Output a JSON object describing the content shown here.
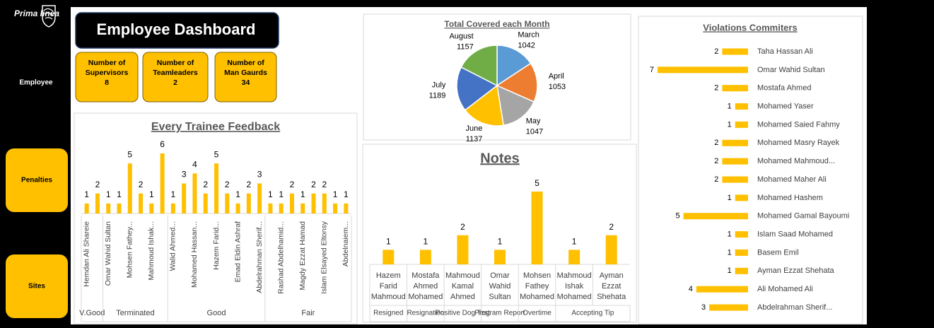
{
  "sidebar": {
    "logo": "Prima linea",
    "nav": [
      "Employee",
      "Penalties",
      "Sites"
    ]
  },
  "header": {
    "title": "Employee Dashboard"
  },
  "kpis": [
    {
      "label": "Number of Supervisors",
      "value": 8
    },
    {
      "label": "Number of Teamleaders",
      "value": 2
    },
    {
      "label": "Number of Man Gaurds",
      "value": 34
    }
  ],
  "chart_data": [
    {
      "type": "bar",
      "title": "Every Trainee Feedback",
      "color": "#ffc000",
      "groups": [
        {
          "name": "V.Good",
          "categories": [
            "Hemdan Ali Shareie",
            null
          ],
          "values": [
            1,
            2
          ]
        },
        {
          "name": "Terminated",
          "categories": [
            "Omar Wahid Sultan",
            null,
            "Mohsen Fathey...",
            null,
            "Mahmoud Ishak...",
            null
          ],
          "values": [
            1,
            1,
            5,
            2,
            1,
            6
          ]
        },
        {
          "name": "Good",
          "categories": [
            "Walid Ahmed...",
            null,
            "Mohamed Hassan...",
            null,
            "Hazem Farid...",
            null,
            "Emad Eldin Ashraf",
            null,
            "Abdelrahman Sherif..."
          ],
          "values": [
            1,
            3,
            4,
            2,
            5,
            2,
            1,
            2,
            3
          ]
        },
        {
          "name": "Fair",
          "categories": [
            null,
            "Rashad Abdelhamid...",
            null,
            "Magdy Ezzat Hamad",
            null,
            "Islam Elsayed Eltonsy",
            null,
            "Abdelnaiem..."
          ],
          "values": [
            1,
            1,
            2,
            1,
            2,
            2,
            1,
            1
          ]
        }
      ]
    },
    {
      "type": "pie",
      "title": "Total Covered each Month",
      "categories": [
        "March",
        "April",
        "May",
        "June",
        "July",
        "August"
      ],
      "values": [
        1042,
        1053,
        1047,
        1137,
        1189,
        1157
      ],
      "colors": [
        "#5b9bd5",
        "#ed7d31",
        "#a5a5a5",
        "#ffc000",
        "#4472c4",
        "#70ad47"
      ]
    },
    {
      "type": "bar",
      "title": "Notes",
      "color": "#ffc000",
      "groups": [
        {
          "name": "Resigned",
          "categories": [
            "Hazem Farid Mahmoud"
          ],
          "values": [
            1
          ]
        },
        {
          "name": "Resignation",
          "categories": [
            "Mostafa Ahmed Mohamed"
          ],
          "values": [
            1
          ]
        },
        {
          "name": "Positive Dog Test",
          "categories": [
            "Mahmoud Kamal Ahmed"
          ],
          "values": [
            2
          ]
        },
        {
          "name": "Program Report",
          "categories": [
            "Omar Wahid Sultan"
          ],
          "values": [
            1
          ]
        },
        {
          "name": "Overtime",
          "categories": [
            "Mohsen Fathey Mohamed"
          ],
          "values": [
            5
          ]
        },
        {
          "name": "Accepting Tip",
          "categories": [
            "Mahmoud Ishak Mohamed",
            "Ayman Ezzat Shehata"
          ],
          "values": [
            1,
            2
          ]
        }
      ]
    },
    {
      "type": "barh",
      "title": "Violations Commiters",
      "color": "#ffc000",
      "categories": [
        "Taha Hassan Ali",
        "Omar Wahid Sultan",
        "Mostafa Ahmed",
        "Mohamed Yaser",
        "Mohamed Saied Fahmy",
        "Mohamed Masry Rayek",
        "Mohamed Mahmoud...",
        "Mohamed Maher Ali",
        "Mohamed Hashem",
        "Mohamed Gamal Bayoumi",
        "Islam Saad Mohamed",
        "Basem Emil",
        "Ayman Ezzat Shehata",
        "Ali Mohamed Ali",
        "Abdelrahman Sherif..."
      ],
      "values": [
        2,
        7,
        2,
        1,
        1,
        2,
        2,
        2,
        1,
        5,
        1,
        1,
        1,
        4,
        3
      ]
    }
  ]
}
